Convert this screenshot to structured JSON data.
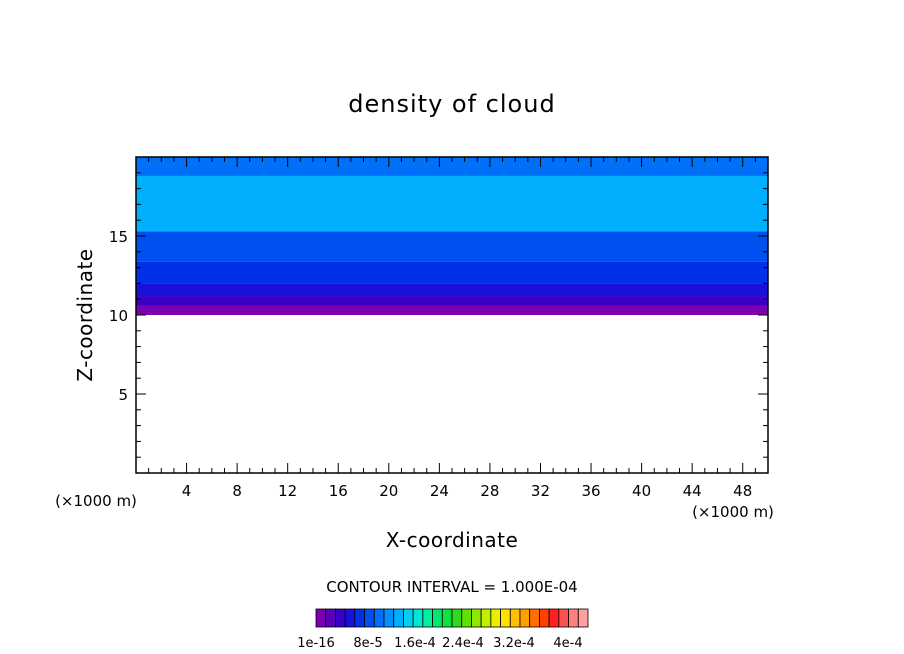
{
  "chart_data": {
    "type": "heatmap",
    "title": "density of cloud",
    "xlabel": "X-coordinate",
    "ylabel": "Z-coordinate",
    "x_unit_label": "(×1000 m)",
    "y_unit_label": "(×1000 m)",
    "xlim": [
      0,
      50
    ],
    "ylim": [
      0,
      20
    ],
    "x_ticks": [
      4,
      8,
      12,
      16,
      20,
      24,
      28,
      32,
      36,
      40,
      44,
      48
    ],
    "x_tick_labels": [
      "4",
      "8",
      "12",
      "16",
      "20",
      "24",
      "28",
      "32",
      "36",
      "40",
      "44",
      "48"
    ],
    "y_ticks": [
      5,
      10,
      15
    ],
    "y_tick_labels": [
      "5",
      "10",
      "15"
    ],
    "contour_interval_text": "CONTOUR INTERVAL = 1.000E-04",
    "colorbar_labels": [
      "1e-16",
      "8e-5",
      "1.6e-4",
      "2.4e-4",
      "3.2e-4",
      "4e-4"
    ],
    "colorbar_colors": [
      "#7a00b0",
      "#5a00b8",
      "#3a00c8",
      "#1a10d8",
      "#0030e8",
      "#0050f0",
      "#0070f8",
      "#0090ff",
      "#00b0ff",
      "#00d0f0",
      "#00e8d0",
      "#00f0a0",
      "#00e870",
      "#10e040",
      "#30d820",
      "#60e000",
      "#90e800",
      "#c0f000",
      "#e8f000",
      "#ffe000",
      "#ffc000",
      "#ffa000",
      "#ff7000",
      "#ff4000",
      "#ff2020",
      "#ff5050",
      "#ff8080",
      "#ffa0a0"
    ],
    "field_layers": [
      {
        "z_range": [
          10.0,
          10.6
        ],
        "color": "#7a00b0"
      },
      {
        "z_range": [
          10.6,
          11.2
        ],
        "color": "#3a00c8"
      },
      {
        "z_range": [
          11.2,
          12.0
        ],
        "color": "#1a10d8"
      },
      {
        "z_range": [
          12.0,
          13.4
        ],
        "color": "#0030e8"
      },
      {
        "z_range": [
          13.4,
          15.3
        ],
        "color": "#0050f0"
      },
      {
        "z_range": [
          15.3,
          18.8
        ],
        "color": "#00b0ff"
      },
      {
        "z_range": [
          18.8,
          20.0
        ],
        "color": "#0070f8"
      }
    ]
  }
}
